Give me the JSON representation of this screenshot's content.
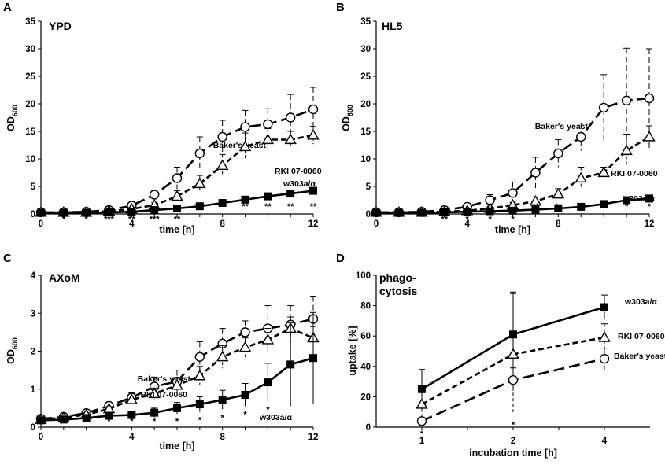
{
  "figure": {
    "panels": [
      {
        "letter": "A",
        "title": "YPD",
        "title2": ""
      },
      {
        "letter": "B",
        "title": "HL5",
        "title2": ""
      },
      {
        "letter": "C",
        "title": "AXoM",
        "title2": ""
      },
      {
        "letter": "D",
        "title": "phago-",
        "title2": "cytosis"
      }
    ]
  },
  "chart_data": [
    {
      "type": "line",
      "panel": "A",
      "title": "YPD",
      "xlabel": "time [h]",
      "ylabel": "OD",
      "ylabel_sub": "600",
      "xlim": [
        0,
        12
      ],
      "ylim": [
        0,
        35
      ],
      "xticks": [
        0,
        4,
        8,
        12
      ],
      "yticks": [
        0,
        5,
        10,
        15,
        20,
        25,
        30,
        35
      ],
      "x": [
        0,
        1,
        2,
        3,
        4,
        5,
        6,
        7,
        8,
        9,
        10,
        11,
        12
      ],
      "series": [
        {
          "name": "Baker's yeast",
          "label": "Baker's yeast",
          "marker": "circle",
          "dash": "long",
          "values": [
            0.3,
            0.3,
            0.4,
            0.7,
            1.5,
            3.5,
            6.5,
            11,
            14,
            15.8,
            16.3,
            17.5,
            19
          ],
          "err": [
            0.2,
            0.2,
            0.2,
            0.3,
            0.5,
            0.8,
            2.0,
            3.0,
            3.0,
            3.0,
            2.8,
            4.2,
            4.0
          ]
        },
        {
          "name": "RKI 07-0060",
          "label": "RKI 07-0060",
          "marker": "triangle",
          "dash": "short",
          "values": [
            0.3,
            0.3,
            0.3,
            0.5,
            0.9,
            1.6,
            3.2,
            5.5,
            8.8,
            12.2,
            13.5,
            13.5,
            14.3
          ],
          "err": [
            0.2,
            0.2,
            0.2,
            0.2,
            0.3,
            0.5,
            1.0,
            1.5,
            2.0,
            2.5,
            2.0,
            1.5,
            1.6
          ]
        },
        {
          "name": "w303a/α",
          "label": "w303a/α",
          "marker": "square",
          "dash": "solid",
          "values": [
            0.2,
            0.2,
            0.2,
            0.3,
            0.4,
            0.7,
            1.0,
            1.4,
            2.0,
            2.6,
            3.2,
            3.7,
            4.2
          ],
          "err": [
            0.1,
            0.1,
            0.1,
            0.1,
            0.1,
            0.2,
            0.2,
            0.3,
            0.3,
            0.4,
            0.4,
            0.5,
            0.5
          ]
        }
      ],
      "significance": [
        {
          "x": 1,
          "text": "*"
        },
        {
          "x": 2,
          "text": "*"
        },
        {
          "x": 3,
          "text": "***"
        },
        {
          "x": 4,
          "text": "**"
        },
        {
          "x": 5,
          "text": "***"
        },
        {
          "x": 6,
          "text": "**"
        },
        {
          "x": 7,
          "text": "***"
        },
        {
          "x": 8,
          "text": "**"
        },
        {
          "x": 9,
          "text": "**"
        },
        {
          "x": 10,
          "text": "**"
        },
        {
          "x": 11,
          "text": "**"
        },
        {
          "x": 12,
          "text": "**"
        }
      ]
    },
    {
      "type": "line",
      "panel": "B",
      "title": "HL5",
      "xlabel": "time [h]",
      "ylabel": "OD",
      "ylabel_sub": "600",
      "xlim": [
        0,
        12
      ],
      "ylim": [
        0,
        35
      ],
      "xticks": [
        0,
        4,
        8,
        12
      ],
      "yticks": [
        0,
        5,
        10,
        15,
        20,
        25,
        30,
        35
      ],
      "x": [
        0,
        1,
        2,
        3,
        4,
        5,
        6,
        7,
        8,
        9,
        10,
        11,
        12
      ],
      "series": [
        {
          "name": "Baker's yeast",
          "label": "Baker's yeast",
          "marker": "circle",
          "dash": "long",
          "values": [
            0.3,
            0.3,
            0.4,
            0.7,
            1.3,
            2.5,
            3.8,
            7.5,
            11,
            14,
            19.3,
            20.6,
            21
          ],
          "err": [
            0.2,
            0.2,
            0.2,
            0.3,
            0.6,
            1.0,
            2.0,
            2.8,
            2.5,
            2.5,
            6.0,
            9.5,
            9.0
          ]
        },
        {
          "name": "RKI 07-0060",
          "label": "RKI 07-0060",
          "marker": "triangle",
          "dash": "short",
          "values": [
            0.3,
            0.3,
            0.3,
            0.4,
            0.6,
            1.0,
            1.6,
            2.3,
            3.6,
            6.5,
            7.5,
            11.5,
            14
          ],
          "err": [
            0.2,
            0.2,
            0.2,
            0.2,
            0.3,
            0.4,
            0.5,
            0.8,
            1.0,
            2.0,
            1.0,
            3.0,
            2.0
          ]
        },
        {
          "name": "w303a/α",
          "label": "w303a/α",
          "marker": "square",
          "dash": "solid",
          "values": [
            0.2,
            0.2,
            0.2,
            0.3,
            0.4,
            0.5,
            0.6,
            0.8,
            1.0,
            1.3,
            1.8,
            2.5,
            2.8
          ],
          "err": [
            0.1,
            0.1,
            0.1,
            0.1,
            0.1,
            0.1,
            0.1,
            0.2,
            0.2,
            0.3,
            0.3,
            0.4,
            0.5
          ]
        }
      ],
      "significance": [
        {
          "x": 3,
          "text": "**"
        },
        {
          "x": 4,
          "text": "*"
        },
        {
          "x": 5,
          "text": "*"
        },
        {
          "x": 6,
          "text": "*"
        },
        {
          "x": 7,
          "text": "**"
        },
        {
          "x": 8,
          "text": "**"
        },
        {
          "x": 9,
          "text": "**"
        },
        {
          "x": 10,
          "text": "**"
        },
        {
          "x": 11,
          "text": "*"
        },
        {
          "x": 12,
          "text": "*"
        }
      ]
    },
    {
      "type": "line",
      "panel": "C",
      "title": "AXoM",
      "xlabel": "time [h]",
      "ylabel": "OD",
      "ylabel_sub": "600",
      "xlim": [
        0,
        12
      ],
      "ylim": [
        0,
        4
      ],
      "xticks": [
        0,
        4,
        8,
        12
      ],
      "yticks": [
        0,
        1,
        2,
        3,
        4
      ],
      "x": [
        0,
        1,
        2,
        3,
        4,
        5,
        6,
        7,
        8,
        9,
        10,
        11,
        12
      ],
      "series": [
        {
          "name": "Baker's yeast",
          "label": "Baker's yeast",
          "marker": "circle",
          "dash": "long",
          "values": [
            0.22,
            0.27,
            0.37,
            0.56,
            0.78,
            1.07,
            1.2,
            1.85,
            2.2,
            2.5,
            2.6,
            2.7,
            2.85
          ],
          "err": [
            0.04,
            0.04,
            0.06,
            0.08,
            0.12,
            0.25,
            0.3,
            0.4,
            0.4,
            0.3,
            0.6,
            0.5,
            0.6
          ]
        },
        {
          "name": "RKI 07-0060",
          "label": "RKI 07-0060",
          "marker": "triangle",
          "dash": "short",
          "values": [
            0.2,
            0.25,
            0.33,
            0.48,
            0.72,
            0.88,
            1.1,
            1.35,
            1.85,
            2.1,
            2.3,
            2.6,
            2.35
          ],
          "err": [
            0.03,
            0.04,
            0.05,
            0.06,
            0.1,
            0.15,
            0.2,
            0.25,
            0.3,
            0.25,
            0.3,
            0.3,
            0.3
          ]
        },
        {
          "name": "w303a/α",
          "label": "w303a/α",
          "marker": "square",
          "dash": "solid",
          "values": [
            0.18,
            0.2,
            0.24,
            0.3,
            0.32,
            0.38,
            0.5,
            0.6,
            0.72,
            0.85,
            1.18,
            1.65,
            1.82
          ],
          "err": [
            0.03,
            0.03,
            0.04,
            0.05,
            0.1,
            0.12,
            0.15,
            0.2,
            0.25,
            0.3,
            0.5,
            1.1,
            1.2
          ]
        }
      ],
      "significance": [
        {
          "x": 2,
          "text": "*"
        },
        {
          "x": 3,
          "text": "*"
        },
        {
          "x": 4,
          "text": "*"
        },
        {
          "x": 5,
          "text": "*"
        },
        {
          "x": 6,
          "text": "*"
        },
        {
          "x": 7,
          "text": "*"
        },
        {
          "x": 8,
          "text": "*"
        },
        {
          "x": 9,
          "text": "*"
        },
        {
          "x": 10,
          "text": "*"
        }
      ]
    },
    {
      "type": "line",
      "panel": "D",
      "title": "phago-cytosis",
      "xlabel": "incubation time [h]",
      "ylabel": "uptake [%]",
      "ylabel_sub": "",
      "categories": [
        "1",
        "2",
        "4"
      ],
      "ylim": [
        0,
        100
      ],
      "yticks": [
        0,
        20,
        40,
        60,
        80,
        100
      ],
      "series": [
        {
          "name": "w303a/α",
          "label": "w303a/α",
          "marker": "square",
          "dash": "solid",
          "values": [
            25,
            61,
            79
          ],
          "err": [
            13,
            28,
            8
          ]
        },
        {
          "name": "RKI 07-0060",
          "label": "RKI 07-0060",
          "marker": "triangle",
          "dash": "short",
          "values": [
            15,
            48,
            59
          ],
          "err": [
            8,
            40,
            9
          ]
        },
        {
          "name": "Baker's yeast",
          "label": "Baker's yeast",
          "marker": "circle",
          "dash": "long",
          "values": [
            4,
            31,
            45
          ],
          "err": [
            2,
            8,
            7
          ]
        }
      ],
      "significance": [
        {
          "x": 1,
          "text": "*"
        },
        {
          "x": 2,
          "text": "*"
        }
      ]
    }
  ]
}
